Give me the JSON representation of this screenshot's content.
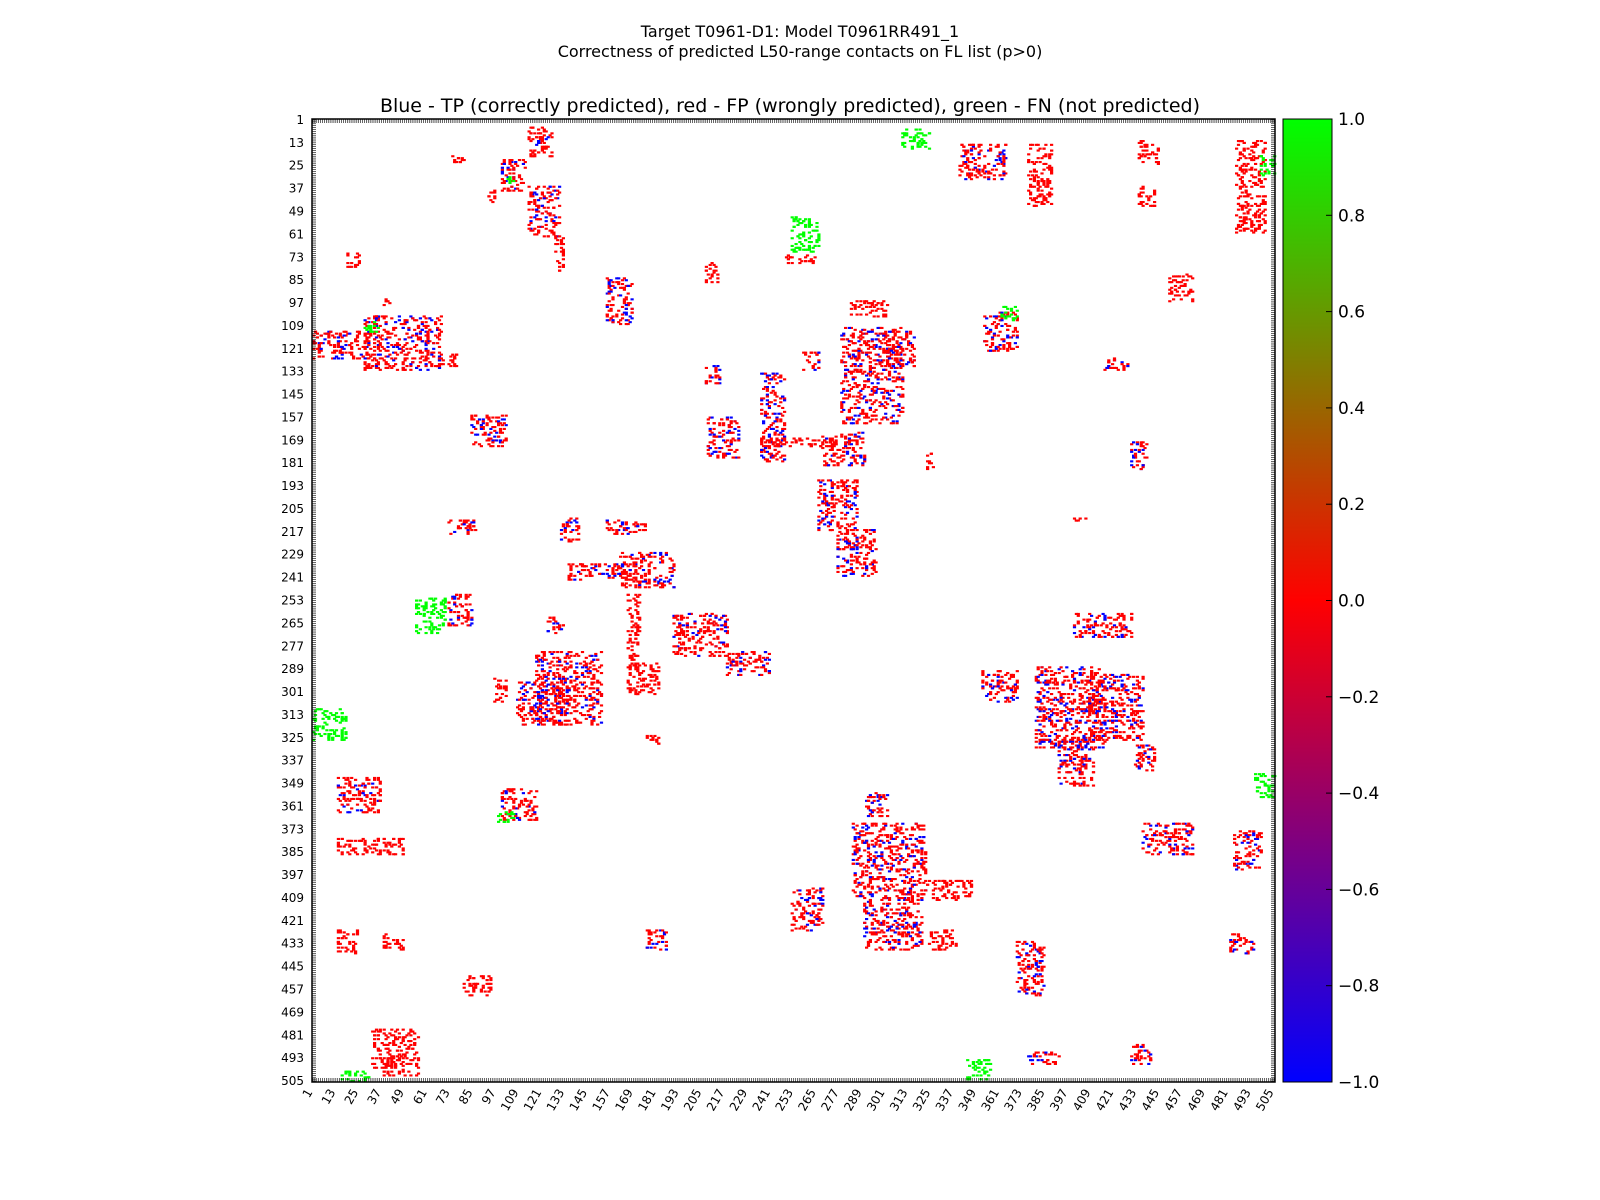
{
  "title_line1": "Target T0961-D1: Model T0961RR491_1",
  "title_line2": "Correctness of predicted L50-range contacts on FL list (p>0)",
  "chart_data": {
    "type": "heatmap",
    "title": "Blue - TP (correctly predicted), red - FP (wrongly predicted), green - FN (not predicted)",
    "axis_range": [
      1,
      505
    ],
    "ticks": [
      "1",
      "13",
      "25",
      "37",
      "49",
      "61",
      "73",
      "85",
      "97",
      "109",
      "121",
      "133",
      "145",
      "157",
      "169",
      "181",
      "193",
      "205",
      "217",
      "229",
      "241",
      "253",
      "265",
      "277",
      "289",
      "301",
      "313",
      "325",
      "337",
      "349",
      "361",
      "373",
      "385",
      "397",
      "409",
      "421",
      "433",
      "445",
      "457",
      "469",
      "481",
      "493",
      "505"
    ],
    "colorbar": {
      "min": -1.0,
      "max": 1.0,
      "ticks": [
        "1.0",
        "0.8",
        "0.6",
        "0.4",
        "0.2",
        "0.0",
        "−0.2",
        "−0.4",
        "−0.6",
        "−0.8",
        "−1.0"
      ],
      "colors": {
        "low": "#0000ff",
        "mid": "#ff0000",
        "high": "#00ff00"
      }
    },
    "legend": {
      "tp_color": "#0000ff",
      "fp_color": "#ff0000",
      "fn_color": "#00ff00"
    },
    "clusters": [
      {
        "kind": "fp",
        "x": [
          114,
          126
        ],
        "y": [
          5,
          20
        ]
      },
      {
        "kind": "mix",
        "x": [
          118,
          124
        ],
        "y": [
          10,
          17
        ]
      },
      {
        "kind": "fp",
        "x": [
          70,
          80
        ],
        "y": [
          20,
          23
        ]
      },
      {
        "kind": "mix",
        "x": [
          100,
          112
        ],
        "y": [
          22,
          38
        ]
      },
      {
        "kind": "fn",
        "x": [
          103,
          106
        ],
        "y": [
          30,
          34
        ]
      },
      {
        "kind": "fp",
        "x": [
          93,
          97
        ],
        "y": [
          38,
          44
        ]
      },
      {
        "kind": "mix",
        "x": [
          114,
          130
        ],
        "y": [
          36,
          62
        ]
      },
      {
        "kind": "fp",
        "x": [
          128,
          132
        ],
        "y": [
          62,
          80
        ]
      },
      {
        "kind": "fp",
        "x": [
          19,
          25
        ],
        "y": [
          71,
          78
        ]
      },
      {
        "kind": "mix",
        "x": [
          155,
          168
        ],
        "y": [
          84,
          108
        ]
      },
      {
        "kind": "fp",
        "x": [
          38,
          42
        ],
        "y": [
          95,
          98
        ]
      },
      {
        "kind": "mix",
        "x": [
          1,
          30
        ],
        "y": [
          112,
          126
        ]
      },
      {
        "kind": "mix",
        "x": [
          28,
          68
        ],
        "y": [
          104,
          132
        ]
      },
      {
        "kind": "fn",
        "x": [
          28,
          35
        ],
        "y": [
          106,
          112
        ]
      },
      {
        "kind": "fp",
        "x": [
          66,
          76
        ],
        "y": [
          124,
          130
        ]
      },
      {
        "kind": "mix",
        "x": [
          84,
          102
        ],
        "y": [
          156,
          172
        ]
      },
      {
        "kind": "mix",
        "x": [
          207,
          214
        ],
        "y": [
          130,
          140
        ]
      },
      {
        "kind": "mix",
        "x": [
          208,
          224
        ],
        "y": [
          157,
          178
        ]
      },
      {
        "kind": "mix",
        "x": [
          236,
          248
        ],
        "y": [
          134,
          180
        ]
      },
      {
        "kind": "mix",
        "x": [
          258,
          266
        ],
        "y": [
          123,
          132
        ]
      },
      {
        "kind": "mix",
        "x": [
          278,
          310
        ],
        "y": [
          110,
          160
        ]
      },
      {
        "kind": "mix",
        "x": [
          300,
          316
        ],
        "y": [
          112,
          130
        ]
      },
      {
        "kind": "fp",
        "x": [
          283,
          302
        ],
        "y": [
          96,
          104
        ]
      },
      {
        "kind": "fn",
        "x": [
          252,
          266
        ],
        "y": [
          52,
          70
        ]
      },
      {
        "kind": "fp",
        "x": [
          249,
          264
        ],
        "y": [
          72,
          76
        ]
      },
      {
        "kind": "fp",
        "x": [
          207,
          213
        ],
        "y": [
          76,
          86
        ]
      },
      {
        "kind": "fn",
        "x": [
          310,
          324
        ],
        "y": [
          6,
          16
        ]
      },
      {
        "kind": "mix",
        "x": [
          340,
          364
        ],
        "y": [
          14,
          32
        ]
      },
      {
        "kind": "fp",
        "x": [
          376,
          388
        ],
        "y": [
          14,
          46
        ]
      },
      {
        "kind": "fp",
        "x": [
          434,
          444
        ],
        "y": [
          12,
          24
        ]
      },
      {
        "kind": "fp",
        "x": [
          434,
          442
        ],
        "y": [
          36,
          46
        ]
      },
      {
        "kind": "fp",
        "x": [
          485,
          500
        ],
        "y": [
          12,
          60
        ]
      },
      {
        "kind": "fn",
        "x": [
          498,
          505
        ],
        "y": [
          20,
          30
        ]
      },
      {
        "kind": "fp",
        "x": [
          450,
          462
        ],
        "y": [
          82,
          96
        ]
      },
      {
        "kind": "mix",
        "x": [
          353,
          370
        ],
        "y": [
          102,
          122
        ]
      },
      {
        "kind": "fn",
        "x": [
          362,
          370
        ],
        "y": [
          99,
          106
        ]
      },
      {
        "kind": "mix",
        "x": [
          416,
          428
        ],
        "y": [
          126,
          132
        ]
      },
      {
        "kind": "mix",
        "x": [
          268,
          290
        ],
        "y": [
          165,
          182
        ]
      },
      {
        "kind": "fp",
        "x": [
          236,
          274
        ],
        "y": [
          168,
          172
        ]
      },
      {
        "kind": "fp",
        "x": [
          323,
          326
        ],
        "y": [
          176,
          184
        ]
      },
      {
        "kind": "mix",
        "x": [
          266,
          286
        ],
        "y": [
          190,
          216
        ]
      },
      {
        "kind": "mix",
        "x": [
          276,
          296
        ],
        "y": [
          216,
          240
        ]
      },
      {
        "kind": "mix",
        "x": [
          430,
          438
        ],
        "y": [
          170,
          184
        ]
      },
      {
        "kind": "fp",
        "x": [
          400,
          406
        ],
        "y": [
          209,
          211
        ]
      },
      {
        "kind": "mix",
        "x": [
          131,
          140
        ],
        "y": [
          210,
          222
        ]
      },
      {
        "kind": "mix",
        "x": [
          155,
          175
        ],
        "y": [
          211,
          218
        ]
      },
      {
        "kind": "mix",
        "x": [
          135,
          166
        ],
        "y": [
          234,
          242
        ]
      },
      {
        "kind": "mix",
        "x": [
          162,
          190
        ],
        "y": [
          228,
          246
        ]
      },
      {
        "kind": "mix",
        "x": [
          72,
          86
        ],
        "y": [
          211,
          218
        ]
      },
      {
        "kind": "mix",
        "x": [
          72,
          84
        ],
        "y": [
          250,
          266
        ]
      },
      {
        "kind": "fn",
        "x": [
          55,
          70
        ],
        "y": [
          252,
          270
        ]
      },
      {
        "kind": "mix",
        "x": [
          124,
          132
        ],
        "y": [
          262,
          270
        ]
      },
      {
        "kind": "mix",
        "x": [
          190,
          218
        ],
        "y": [
          260,
          282
        ]
      },
      {
        "kind": "mix",
        "x": [
          218,
          240
        ],
        "y": [
          280,
          292
        ]
      },
      {
        "kind": "fp",
        "x": [
          166,
          172
        ],
        "y": [
          250,
          290
        ]
      },
      {
        "kind": "fp",
        "x": [
          166,
          182
        ],
        "y": [
          286,
          302
        ]
      },
      {
        "kind": "mix",
        "x": [
          118,
          152
        ],
        "y": [
          280,
          318
        ]
      },
      {
        "kind": "mix",
        "x": [
          108,
          132
        ],
        "y": [
          296,
          318
        ]
      },
      {
        "kind": "fp",
        "x": [
          96,
          102
        ],
        "y": [
          294,
          306
        ]
      },
      {
        "kind": "fn",
        "x": [
          1,
          18
        ],
        "y": [
          310,
          326
        ]
      },
      {
        "kind": "fp",
        "x": [
          176,
          184
        ],
        "y": [
          324,
          328
        ]
      },
      {
        "kind": "mix",
        "x": [
          352,
          370
        ],
        "y": [
          290,
          306
        ]
      },
      {
        "kind": "mix",
        "x": [
          380,
          416
        ],
        "y": [
          288,
          330
        ]
      },
      {
        "kind": "mix",
        "x": [
          408,
          436
        ],
        "y": [
          292,
          326
        ]
      },
      {
        "kind": "mix",
        "x": [
          392,
          410
        ],
        "y": [
          324,
          350
        ]
      },
      {
        "kind": "mix",
        "x": [
          400,
          430
        ],
        "y": [
          260,
          272
        ]
      },
      {
        "kind": "mix",
        "x": [
          432,
          442
        ],
        "y": [
          328,
          342
        ]
      },
      {
        "kind": "mix",
        "x": [
          14,
          36
        ],
        "y": [
          346,
          364
        ]
      },
      {
        "kind": "fp",
        "x": [
          14,
          48
        ],
        "y": [
          378,
          386
        ]
      },
      {
        "kind": "mix",
        "x": [
          100,
          118
        ],
        "y": [
          352,
          368
        ]
      },
      {
        "kind": "fn",
        "x": [
          98,
          106
        ],
        "y": [
          364,
          370
        ]
      },
      {
        "kind": "mix",
        "x": [
          290,
          302
        ],
        "y": [
          354,
          366
        ]
      },
      {
        "kind": "mix",
        "x": [
          284,
          322
        ],
        "y": [
          370,
          408
        ]
      },
      {
        "kind": "fp",
        "x": [
          320,
          346
        ],
        "y": [
          400,
          410
        ]
      },
      {
        "kind": "mix",
        "x": [
          290,
          320
        ],
        "y": [
          408,
          436
        ]
      },
      {
        "kind": "mix",
        "x": [
          252,
          268
        ],
        "y": [
          404,
          426
        ]
      },
      {
        "kind": "mix",
        "x": [
          176,
          186
        ],
        "y": [
          426,
          436
        ]
      },
      {
        "kind": "fp",
        "x": [
          324,
          338
        ],
        "y": [
          426,
          436
        ]
      },
      {
        "kind": "mix",
        "x": [
          436,
          462
        ],
        "y": [
          370,
          386
        ]
      },
      {
        "kind": "mix",
        "x": [
          484,
          498
        ],
        "y": [
          374,
          394
        ]
      },
      {
        "kind": "fn",
        "x": [
          495,
          505
        ],
        "y": [
          344,
          356
        ]
      },
      {
        "kind": "mix",
        "x": [
          370,
          384
        ],
        "y": [
          432,
          460
        ]
      },
      {
        "kind": "mix",
        "x": [
          482,
          494
        ],
        "y": [
          428,
          438
        ]
      },
      {
        "kind": "fp",
        "x": [
          14,
          24
        ],
        "y": [
          426,
          438
        ]
      },
      {
        "kind": "fp",
        "x": [
          38,
          48
        ],
        "y": [
          428,
          436
        ]
      },
      {
        "kind": "fp",
        "x": [
          80,
          94
        ],
        "y": [
          450,
          460
        ]
      },
      {
        "kind": "fp",
        "x": [
          32,
          56
        ],
        "y": [
          478,
          502
        ]
      },
      {
        "kind": "mix",
        "x": [
          376,
          392
        ],
        "y": [
          490,
          496
        ]
      },
      {
        "kind": "mix",
        "x": [
          430,
          440
        ],
        "y": [
          486,
          496
        ]
      },
      {
        "kind": "fn",
        "x": [
          344,
          356
        ],
        "y": [
          494,
          504
        ]
      },
      {
        "kind": "fn",
        "x": [
          16,
          30
        ],
        "y": [
          500,
          505
        ]
      }
    ]
  }
}
